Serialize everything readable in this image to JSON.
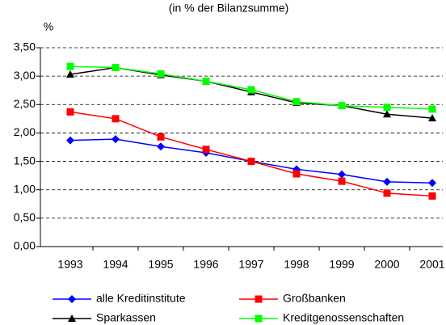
{
  "chart_data": {
    "type": "line",
    "title": "(in % der Bilanzsumme)",
    "y_label": "%",
    "categories": [
      "1993",
      "1994",
      "1995",
      "1996",
      "1997",
      "1998",
      "1999",
      "2000",
      "2001"
    ],
    "series": [
      {
        "name": "alle Kreditinstitute",
        "color": "#0000ff",
        "marker": "diamond",
        "values": [
          1.87,
          1.89,
          1.76,
          1.65,
          1.5,
          1.36,
          1.27,
          1.14,
          1.12
        ]
      },
      {
        "name": "Großbanken",
        "color": "#ff0000",
        "marker": "square",
        "values": [
          2.37,
          2.25,
          1.93,
          1.71,
          1.5,
          1.28,
          1.15,
          0.94,
          0.89
        ]
      },
      {
        "name": "Sparkassen",
        "color": "#000000",
        "marker": "triangle",
        "values": [
          3.03,
          3.15,
          3.02,
          2.91,
          2.72,
          2.53,
          2.48,
          2.33,
          2.26
        ]
      },
      {
        "name": "Kreditgenossenschaften",
        "color": "#00ff00",
        "marker": "square",
        "values": [
          3.17,
          3.15,
          3.04,
          2.91,
          2.76,
          2.55,
          2.48,
          2.45,
          2.42
        ]
      }
    ],
    "ylim": [
      0,
      3.5
    ],
    "yticks": [
      {
        "value": 0,
        "label": "0,00"
      },
      {
        "value": 0.5,
        "label": "0,50"
      },
      {
        "value": 1,
        "label": "1,00"
      },
      {
        "value": 1.5,
        "label": "1,50"
      },
      {
        "value": 2,
        "label": "2,00"
      },
      {
        "value": 2.5,
        "label": "2,50"
      },
      {
        "value": 3,
        "label": "3,00"
      },
      {
        "value": 3.5,
        "label": "3,50"
      }
    ],
    "grid": true
  }
}
